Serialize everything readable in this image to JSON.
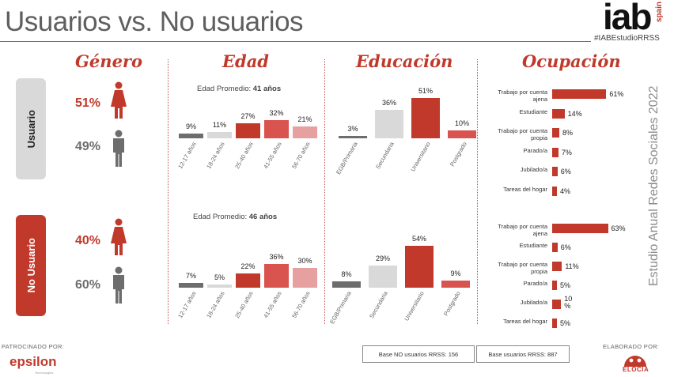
{
  "title": "Usuarios vs. No usuarios",
  "brand": {
    "logo": "iab",
    "logo_sub": "spain",
    "hashtag": "#IABEstudioRRSS"
  },
  "side_text": "Estudio Anual Redes Sociales 2022",
  "headers": {
    "gender": "Género",
    "age": "Edad",
    "education": "Educación",
    "occupation": "Ocupación"
  },
  "groups": {
    "usuario": {
      "label": "Usuario",
      "bg": "#d9d9d9",
      "text": "#222222"
    },
    "no_usuario": {
      "label": "No Usuario",
      "bg": "#c0392b",
      "text": "#ffffff"
    }
  },
  "gender": {
    "usuario": {
      "female": "51%",
      "male": "49%"
    },
    "no_usuario": {
      "female": "40%",
      "male": "60%"
    }
  },
  "age": {
    "usuario": {
      "avg_label": "Edad Promedio:",
      "avg_value": "41 años"
    },
    "no_usuario": {
      "avg_label": "Edad Promedio:",
      "avg_value": "46 años"
    }
  },
  "colors": {
    "red": "#c0392b",
    "darkgray": "#6d6d6d",
    "lightgray": "#d9d9d9",
    "pink": "#e6a0a0",
    "midred": "#d9534f"
  },
  "chart_data": [
    {
      "type": "bar",
      "group": "Usuario",
      "title": "Edad",
      "categories": [
        "12-17 años",
        "18-24 años",
        "25-40 años",
        "41-55 años",
        "56-70 años"
      ],
      "values": [
        9,
        11,
        27,
        32,
        21
      ],
      "labels": [
        "9%",
        "11%",
        "27%",
        "32%",
        "21%"
      ],
      "colors": [
        "#6d6d6d",
        "#d9d9d9",
        "#c0392b",
        "#d9534f",
        "#e6a0a0"
      ]
    },
    {
      "type": "bar",
      "group": "No Usuario",
      "title": "Edad",
      "categories": [
        "12-17 años",
        "18-24 años",
        "25-40 años",
        "41-55 años",
        "56-70 años"
      ],
      "values": [
        7,
        5,
        22,
        36,
        30
      ],
      "labels": [
        "7%",
        "5%",
        "22%",
        "36%",
        "30%"
      ],
      "colors": [
        "#6d6d6d",
        "#d9d9d9",
        "#c0392b",
        "#d9534f",
        "#e6a0a0"
      ]
    },
    {
      "type": "bar",
      "group": "Usuario",
      "title": "Educación",
      "categories": [
        "EGB/Primaria",
        "Secundaria",
        "Universitario",
        "Postgrado"
      ],
      "values": [
        3,
        36,
        51,
        10
      ],
      "labels": [
        "3%",
        "36%",
        "51%",
        "10%"
      ],
      "colors": [
        "#6d6d6d",
        "#d9d9d9",
        "#c0392b",
        "#d9534f"
      ]
    },
    {
      "type": "bar",
      "group": "No Usuario",
      "title": "Educación",
      "categories": [
        "EGB/Primaria",
        "Secundaria",
        "Universitario",
        "Postgrado"
      ],
      "values": [
        8,
        29,
        54,
        9
      ],
      "labels": [
        "8%",
        "29%",
        "54%",
        "9%"
      ],
      "colors": [
        "#6d6d6d",
        "#d9d9d9",
        "#c0392b",
        "#d9534f"
      ]
    },
    {
      "type": "bar",
      "orientation": "horizontal",
      "group": "Usuario",
      "title": "Ocupación",
      "categories": [
        "Trabajo por cuenta ajena",
        "Estudiante",
        "Trabajo por cuenta propia",
        "Parado/a",
        "Jubilado/a",
        "Tareas del hogar"
      ],
      "values": [
        61,
        14,
        8,
        7,
        6,
        4
      ],
      "labels": [
        "61%",
        "14%",
        "8%",
        "7%",
        "6%",
        "4%"
      ]
    },
    {
      "type": "bar",
      "orientation": "horizontal",
      "group": "No Usuario",
      "title": "Ocupación",
      "categories": [
        "Trabajo por cuenta ajena",
        "Estudiante",
        "Trabajo por cuenta propia",
        "Parado/a",
        "Jubilado/a",
        "Tareas del hogar"
      ],
      "values": [
        63,
        6,
        11,
        5,
        10,
        5
      ],
      "labels": [
        "63%",
        "6%",
        "11%",
        "5%",
        "10 %",
        "5%"
      ]
    }
  ],
  "footer": {
    "sponsor_label": "PATROCINADO POR:",
    "sponsor_name": "epsilon",
    "sponsor_sub": "Technologies",
    "base_no": "Base NO usuarios RRSS: 156",
    "base_si": "Base usuarios RRSS: 887",
    "made_label": "ELABORADO POR:",
    "made_name": "ELOCIA"
  }
}
